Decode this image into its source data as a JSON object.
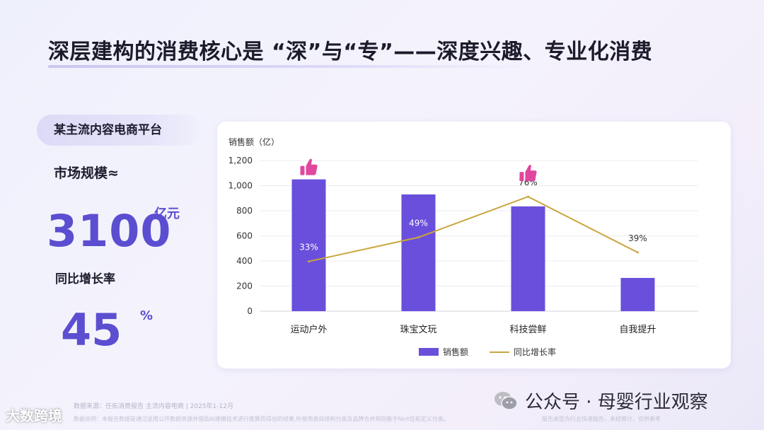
{
  "title": "深层建构的消费核心是 “深”与“专”——深度兴趣、专业化消费",
  "platform_label": "某主流内容电商平台",
  "market": {
    "label": "市场规模≈",
    "value": "3100",
    "unit": "亿元"
  },
  "growth": {
    "label": "同比增长率",
    "value": "45",
    "unit": "%"
  },
  "footer": {
    "source": "数据来源：任拓消费报告 主流内容电商 | 2025年1-12月",
    "disclaimer": "数据说明：本报告数据是通过运用公开数据资源并借助AI建模技术进行推算而得出的结果,所使用类目结构分类及品牌合并规则基于Nint任拓定义分类。",
    "disclaimer_right": "报告类型为行业快速报告，未经审计，仅供参考",
    "wechat": "公众号 · 母婴行业观察",
    "corner_logo": "大数跨境"
  },
  "icons": {
    "thumbs_up": "thumbs-up-icon",
    "wechat": "wechat-icon"
  },
  "colors": {
    "bar": "#6a4fdc",
    "line": "#c9a63e",
    "accent": "#5b4ed0",
    "thumb": "#e0479e"
  },
  "chart_data": {
    "type": "bar",
    "categories": [
      "运动户外",
      "珠宝文玩",
      "科技尝鲜",
      "自我提升"
    ],
    "series": [
      {
        "name": "销售额",
        "type": "bar",
        "values": [
          1050,
          930,
          835,
          265
        ]
      },
      {
        "name": "同比增长率",
        "type": "line",
        "values": [
          33,
          49,
          76,
          39
        ],
        "labels": [
          "33%",
          "49%",
          "76%",
          "39%"
        ]
      }
    ],
    "ylabel": "销售额（亿）",
    "ylim": [
      0,
      1200
    ],
    "yticks": [
      "0",
      "200",
      "400",
      "600",
      "800",
      "1,000",
      "1,200"
    ],
    "secondary_ylim": [
      0,
      100
    ],
    "highlighted_categories": [
      "运动户外",
      "科技尝鲜"
    ],
    "grid": true,
    "legend": "bottom-center"
  }
}
